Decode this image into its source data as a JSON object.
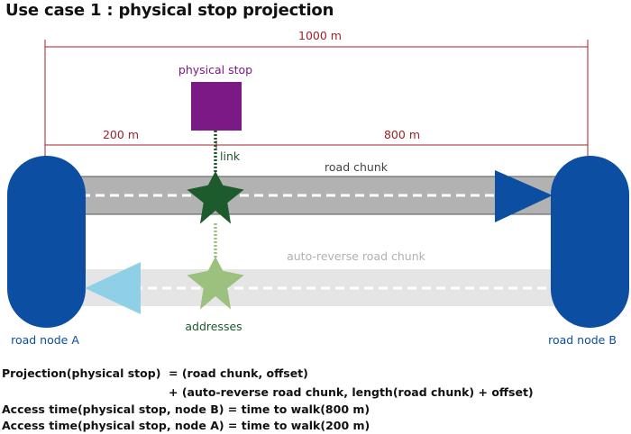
{
  "title": "Use case 1 : physical stop projection",
  "dimensions": {
    "total": "1000 m",
    "left": "200 m",
    "right": "800 m"
  },
  "labels": {
    "physical_stop": "physical stop",
    "link": "link",
    "road_chunk": "road chunk",
    "auto_reverse_road_chunk": "auto-reverse road chunk",
    "addresses": "addresses",
    "road_node_a": "road node A",
    "road_node_b": "road node B"
  },
  "equations": {
    "line1_lhs": "Projection(physical stop)",
    "line1_rhs": "= (road chunk, offset)",
    "line2": "+ (auto-reverse road chunk, length(road chunk) + offset)",
    "line3": "Access time(physical stop, node B) = time to walk(800 m)",
    "line4": "Access time(physical stop, node A) = time to walk(200 m)"
  },
  "colors": {
    "dimension_line": "#a0202a",
    "physical_stop": "#7b1a86",
    "road_node": "#0b4ea2",
    "road_chunk": "#b2b2b2",
    "auto_reverse_road_chunk": "#e5e5e5",
    "forward_arrow": "#0b4ea2",
    "reverse_arrow": "#8fd0e6",
    "link_star": "#1d5a2c",
    "address_star": "#9cc07d",
    "road_chunk_label": "#444444",
    "auto_reverse_label": "#b0b0b0"
  }
}
